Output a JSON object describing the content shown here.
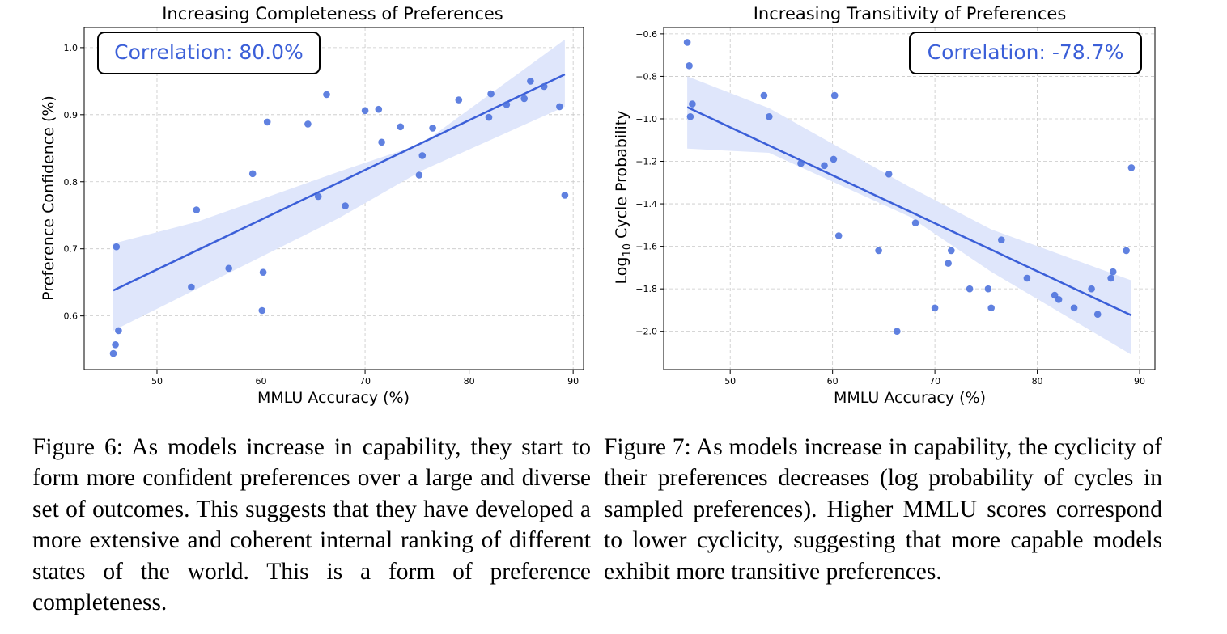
{
  "chart_data": [
    {
      "type": "scatter",
      "title": "Increasing Completeness of Preferences",
      "xlabel": "MMLU Accuracy (%)",
      "ylabel": "Preference Confidence (%)",
      "xlim": [
        43,
        91
      ],
      "ylim": [
        0.52,
        1.03
      ],
      "xticks": [
        50,
        60,
        70,
        80,
        90
      ],
      "yticks": [
        0.6,
        0.7,
        0.8,
        0.9,
        1.0
      ],
      "grid": true,
      "annotation": "Correlation: 80.0%",
      "annotation_position": "top-left",
      "point_color": "#4a6fdc",
      "line_color": "#3b5fd8",
      "band_color": "#dfe6fb",
      "points": {
        "x": [
          45.8,
          46.0,
          46.1,
          46.3,
          53.3,
          53.8,
          56.9,
          59.2,
          60.1,
          60.2,
          60.6,
          64.5,
          65.5,
          66.3,
          68.1,
          70.0,
          71.3,
          71.6,
          73.4,
          75.2,
          75.5,
          76.5,
          79.0,
          81.9,
          82.1,
          83.6,
          85.3,
          85.9,
          87.2,
          88.7,
          89.2
        ],
        "y": [
          0.544,
          0.557,
          0.703,
          0.578,
          0.643,
          0.758,
          0.671,
          0.812,
          0.608,
          0.665,
          0.889,
          0.886,
          0.778,
          0.93,
          0.764,
          0.906,
          0.908,
          0.859,
          0.882,
          0.81,
          0.839,
          0.88,
          0.922,
          0.896,
          0.931,
          0.915,
          0.924,
          0.95,
          0.942,
          0.912,
          0.78
        ]
      },
      "fit": {
        "x": [
          45.8,
          89.2
        ],
        "y": [
          0.638,
          0.96
        ]
      },
      "band": {
        "x": [
          45.8,
          53.8,
          67.5,
          75.5,
          89.2
        ],
        "lower": [
          0.578,
          0.64,
          0.746,
          0.817,
          0.912
        ],
        "upper": [
          0.708,
          0.74,
          0.815,
          0.857,
          1.012
        ]
      }
    },
    {
      "type": "scatter",
      "title": "Increasing Transitivity of Preferences",
      "xlabel": "MMLU Accuracy (%)",
      "ylabel_prefix": "Log",
      "ylabel_sub": "10",
      "ylabel_suffix": " Cycle Probability",
      "xlim": [
        43.5,
        91.5
      ],
      "ylim": [
        -2.18,
        -0.57
      ],
      "xticks": [
        50,
        60,
        70,
        80,
        90
      ],
      "yticks": [
        -0.6,
        -0.8,
        -1.0,
        -1.2,
        -1.4,
        -1.6,
        -1.8,
        -2.0
      ],
      "grid": true,
      "annotation": "Correlation: -78.7%",
      "annotation_position": "top-right",
      "point_color": "#4a6fdc",
      "line_color": "#3b5fd8",
      "band_color": "#dfe6fb",
      "points": {
        "x": [
          45.8,
          46.0,
          46.1,
          46.3,
          53.3,
          53.8,
          56.9,
          59.2,
          60.1,
          60.2,
          60.6,
          64.5,
          65.5,
          66.3,
          68.1,
          70.0,
          71.3,
          71.6,
          73.4,
          75.2,
          75.5,
          76.5,
          79.0,
          81.7,
          82.1,
          83.6,
          85.3,
          85.9,
          87.2,
          87.4,
          88.7,
          89.2
        ],
        "y": [
          -0.64,
          -0.75,
          -0.99,
          -0.93,
          -0.89,
          -0.99,
          -1.21,
          -1.22,
          -1.19,
          -0.89,
          -1.55,
          -1.62,
          -1.26,
          -2.0,
          -1.49,
          -1.89,
          -1.68,
          -1.62,
          -1.8,
          -1.8,
          -1.89,
          -1.57,
          -1.75,
          -1.83,
          -1.85,
          -1.89,
          -1.8,
          -1.92,
          -1.75,
          -1.72,
          -1.62,
          -1.23
        ]
      },
      "fit": {
        "x": [
          45.8,
          89.2
        ],
        "y": [
          -0.945,
          -1.925
        ]
      },
      "band": {
        "x": [
          45.8,
          53.8,
          67.5,
          75.5,
          89.2
        ],
        "lower": [
          -1.14,
          -1.16,
          -1.46,
          -1.72,
          -2.11
        ],
        "upper": [
          -0.8,
          -0.95,
          -1.32,
          -1.52,
          -1.76
        ]
      }
    }
  ],
  "captions": {
    "left": "Figure 6: As models increase in capability, they start to form more confident preferences over a large and diverse set of outcomes. This suggests that they have developed a more extensive and coherent internal ranking of different states of the world. This is a form of preference completeness.",
    "right": "Figure 7: As models increase in capability, the cyclicity of their preferences decreases (log probability of cycles in sampled preferences). Higher MMLU scores correspond to lower cyclicity, suggesting that more capable models exhibit more transitive preferences."
  }
}
